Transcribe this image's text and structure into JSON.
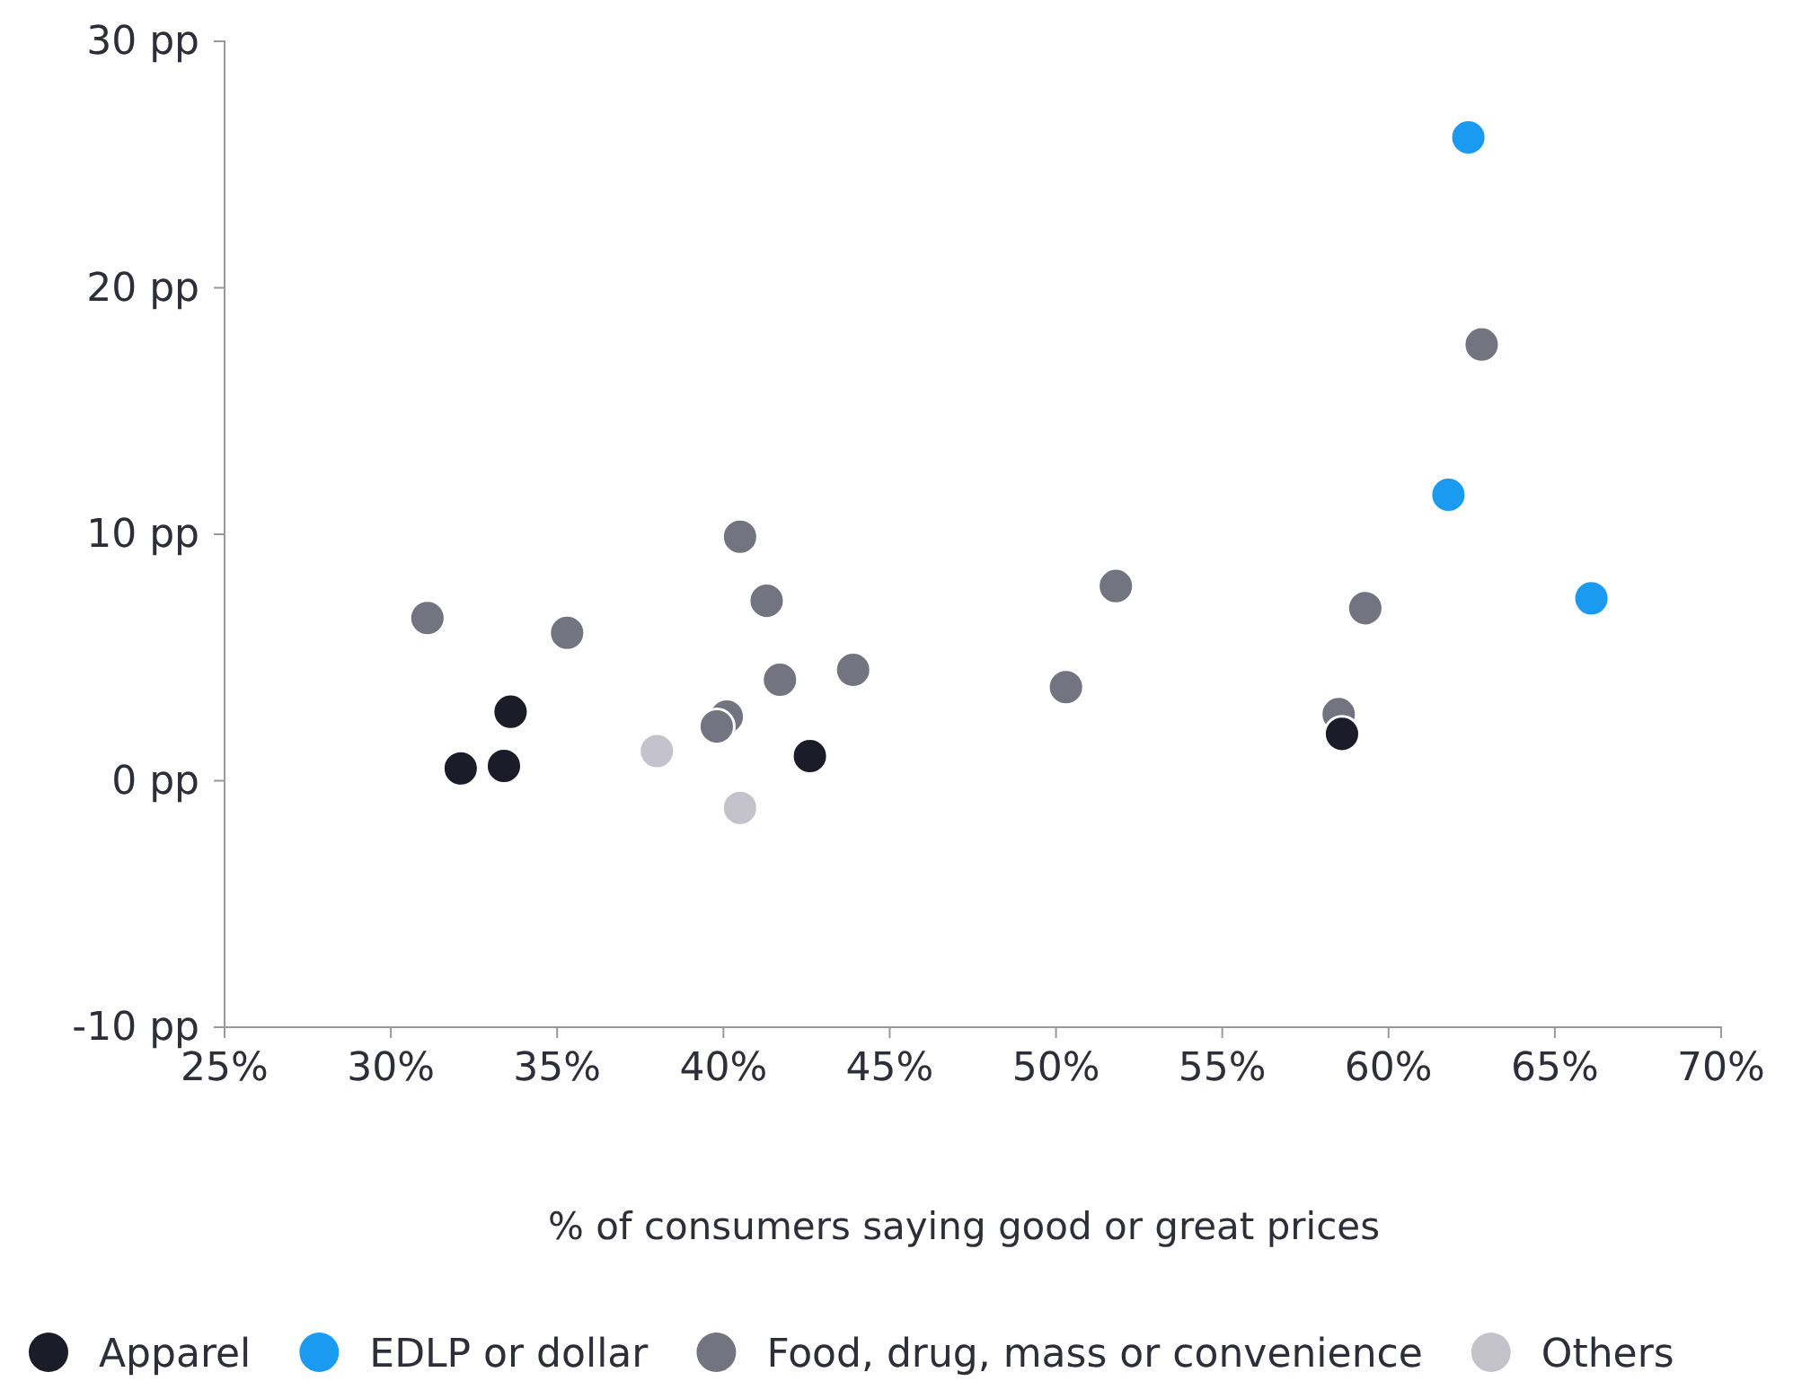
{
  "chart_data": {
    "type": "scatter",
    "xlabel": "% of consumers saying good or great prices",
    "xlim": [
      25,
      70
    ],
    "ylim": [
      -10,
      30
    ],
    "xticks": [
      {
        "value": 25,
        "label": "25%"
      },
      {
        "value": 30,
        "label": "30%"
      },
      {
        "value": 35,
        "label": "35%"
      },
      {
        "value": 40,
        "label": "40%"
      },
      {
        "value": 45,
        "label": "45%"
      },
      {
        "value": 50,
        "label": "50%"
      },
      {
        "value": 55,
        "label": "55%"
      },
      {
        "value": 60,
        "label": "60%"
      },
      {
        "value": 65,
        "label": "65%"
      },
      {
        "value": 70,
        "label": "70%"
      }
    ],
    "yticks": [
      {
        "value": -10,
        "label": "-10 pp"
      },
      {
        "value": 0,
        "label": "0 pp"
      },
      {
        "value": 10,
        "label": "10 pp"
      },
      {
        "value": 20,
        "label": "20 pp"
      },
      {
        "value": 30,
        "label": "30 pp"
      }
    ],
    "grid": false,
    "legend": "bottom",
    "marker": "circle",
    "series": [
      {
        "name": "Apparel",
        "color": "#1c1b28",
        "x": [
          32.1,
          33.4,
          33.6,
          42.6,
          58.6
        ],
        "values": [
          0.5,
          0.6,
          2.8,
          1.0,
          1.9
        ]
      },
      {
        "name": "EDLP or dollar",
        "color": "#1a9af0",
        "x": [
          62.4,
          61.8,
          66.1
        ],
        "values": [
          26.1,
          11.6,
          7.4
        ]
      },
      {
        "name": "Food, drug, mass or convenience",
        "color": "#747480",
        "x": [
          31.1,
          35.3,
          40.5,
          41.3,
          41.7,
          43.9,
          40.1,
          39.8,
          50.3,
          51.8,
          58.5,
          59.3,
          62.8
        ],
        "values": [
          6.6,
          6.0,
          9.9,
          7.3,
          4.1,
          4.5,
          2.6,
          2.2,
          3.8,
          7.9,
          2.7,
          7.0,
          17.7
        ]
      },
      {
        "name": "Others",
        "color": "#c4c3cc",
        "x": [
          38.0,
          40.5
        ],
        "values": [
          1.2,
          -1.1
        ]
      }
    ]
  }
}
